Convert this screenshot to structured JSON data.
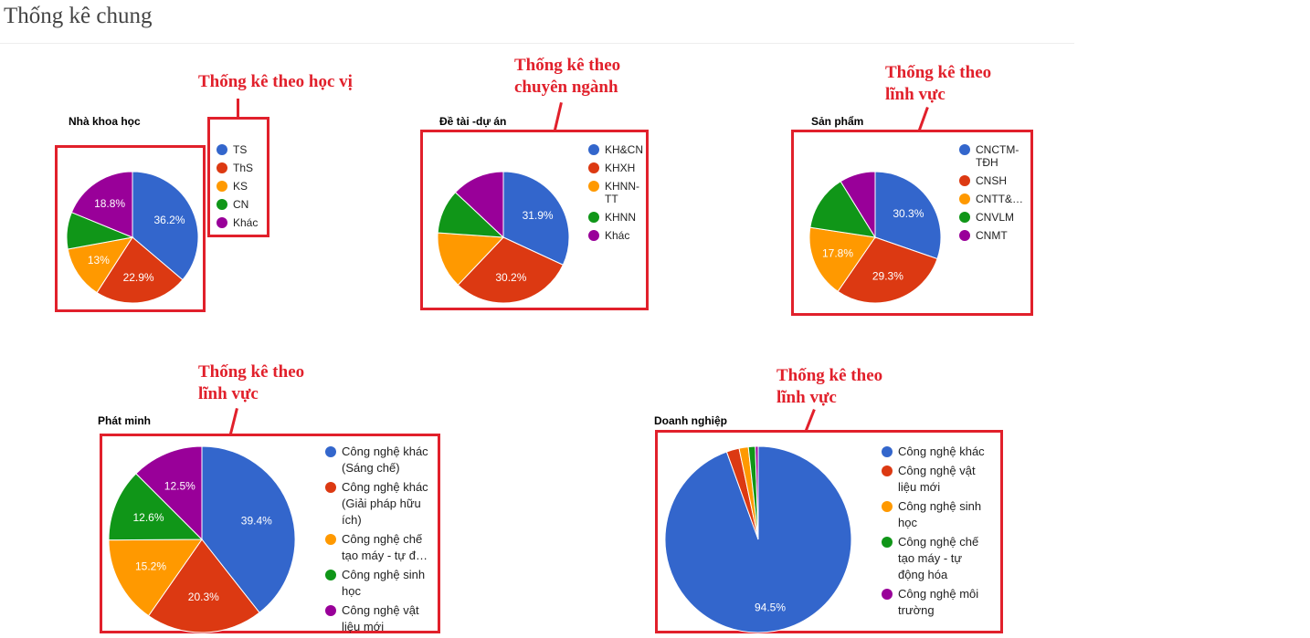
{
  "page": {
    "title": "Thống kê chung"
  },
  "colors": {
    "annotation": "#e1202b"
  },
  "chart_data": [
    {
      "type": "pie",
      "title": "Nhà khoa học",
      "annotation": "Thống kê theo học vị",
      "categories": [
        "TS",
        "ThS",
        "KS",
        "CN",
        "Khác"
      ],
      "values": [
        36.2,
        22.9,
        13,
        9.1,
        18.8
      ],
      "labels": [
        "36.2%",
        "22.9%",
        "13%",
        "",
        "18.8%"
      ],
      "colors": [
        "#3366cc",
        "#dc3912",
        "#ff9900",
        "#109618",
        "#990099"
      ],
      "legend": "right"
    },
    {
      "type": "pie",
      "title": "Đề tài -dự án",
      "annotation": "Thống kê theo chuyên ngành",
      "categories": [
        "KH&CN",
        "KHXH",
        "KHNN-TT",
        "KHNN",
        "Khác"
      ],
      "values": [
        31.9,
        30.2,
        14,
        10.9,
        13
      ],
      "labels": [
        "31.9%",
        "30.2%",
        "",
        "",
        ""
      ],
      "colors": [
        "#3366cc",
        "#dc3912",
        "#ff9900",
        "#109618",
        "#990099"
      ],
      "legend": "right"
    },
    {
      "type": "pie",
      "title": "Sản phẩm",
      "annotation": "Thống kê theo lĩnh vực",
      "categories": [
        "CNCTM-TĐH",
        "CNSH",
        "CNTT&…",
        "CNVLM",
        "CNMT"
      ],
      "values": [
        30.3,
        29.3,
        17.8,
        13.8,
        8.8
      ],
      "labels": [
        "30.3%",
        "29.3%",
        "17.8%",
        "",
        ""
      ],
      "colors": [
        "#3366cc",
        "#dc3912",
        "#ff9900",
        "#109618",
        "#990099"
      ],
      "legend": "right"
    },
    {
      "type": "pie",
      "title": "Phát minh",
      "annotation": "Thống kê theo lĩnh vực",
      "categories": [
        "Công nghệ khác (Sáng chế)",
        "Công nghệ khác (Giải pháp hữu ích)",
        "Công nghệ chế tạo máy - tự đ…",
        "Công nghệ sinh học",
        "Công nghệ vật liệu mới"
      ],
      "values": [
        39.4,
        20.3,
        15.2,
        12.6,
        12.5
      ],
      "labels": [
        "39.4%",
        "20.3%",
        "15.2%",
        "12.6%",
        "12.5%"
      ],
      "colors": [
        "#3366cc",
        "#dc3912",
        "#ff9900",
        "#109618",
        "#990099"
      ],
      "legend": "right"
    },
    {
      "type": "pie",
      "title": "Doanh nghiệp",
      "annotation": "Thống kê theo lĩnh vực",
      "categories": [
        "Công nghệ khác",
        "Công nghệ vật liệu mới",
        "Công nghệ sinh học",
        "Công nghệ chế tạo máy - tự động hóa",
        "Công nghệ môi trường"
      ],
      "values": [
        94.5,
        2.2,
        1.6,
        1.2,
        0.5
      ],
      "labels": [
        "94.5%",
        "",
        "",
        "",
        ""
      ],
      "colors": [
        "#3366cc",
        "#dc3912",
        "#ff9900",
        "#109618",
        "#990099"
      ],
      "legend": "right"
    }
  ]
}
